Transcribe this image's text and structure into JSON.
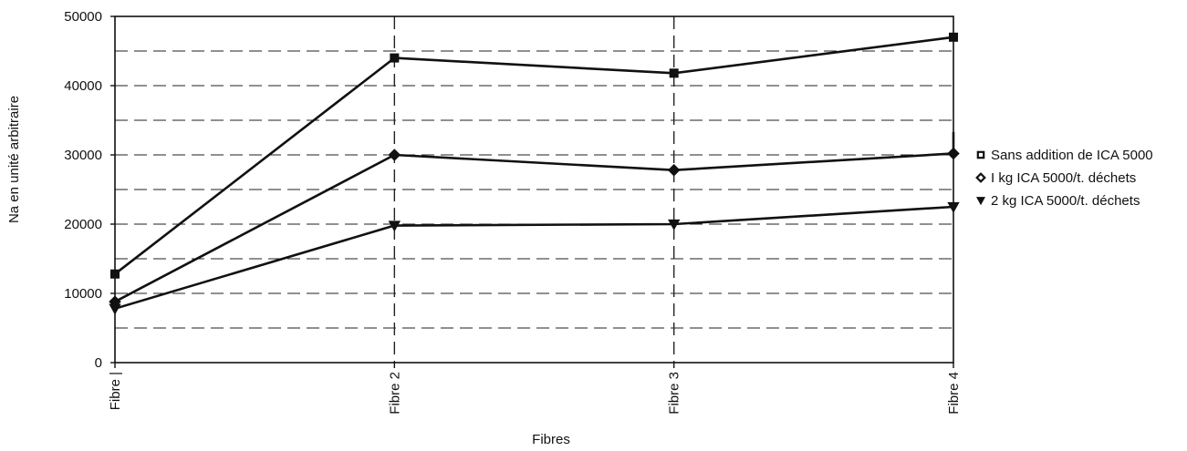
{
  "chart_data": {
    "type": "line",
    "categories": [
      "Fibre |",
      "Fibre 2",
      "Fibre 3",
      "Fibre 4"
    ],
    "xlabel": "Fibres",
    "ylabel": "Na en unité arbitraire",
    "ylim": [
      0,
      50000
    ],
    "yticks": [
      "0",
      "10000",
      "20000",
      "30000",
      "40000",
      "50000"
    ],
    "grid": true,
    "legend_position": "right",
    "series": [
      {
        "name": "Sans addition de ICA 5000",
        "marker": "square",
        "values": [
          12800,
          44000,
          41800,
          47000
        ]
      },
      {
        "name": "I kg ICA 5000/t. déchets",
        "marker": "diamond",
        "values": [
          8800,
          30000,
          27800,
          30200
        ]
      },
      {
        "name": "2 kg ICA 5000/t. déchets",
        "marker": "triangle-down",
        "values": [
          7800,
          19800,
          20000,
          22500
        ]
      }
    ],
    "series_extension": {
      "Sans addition de ICA 5000": null,
      "I kg ICA 5000/t. déchets": 33300,
      "2 kg ICA 5000/t. déchets": null
    }
  }
}
